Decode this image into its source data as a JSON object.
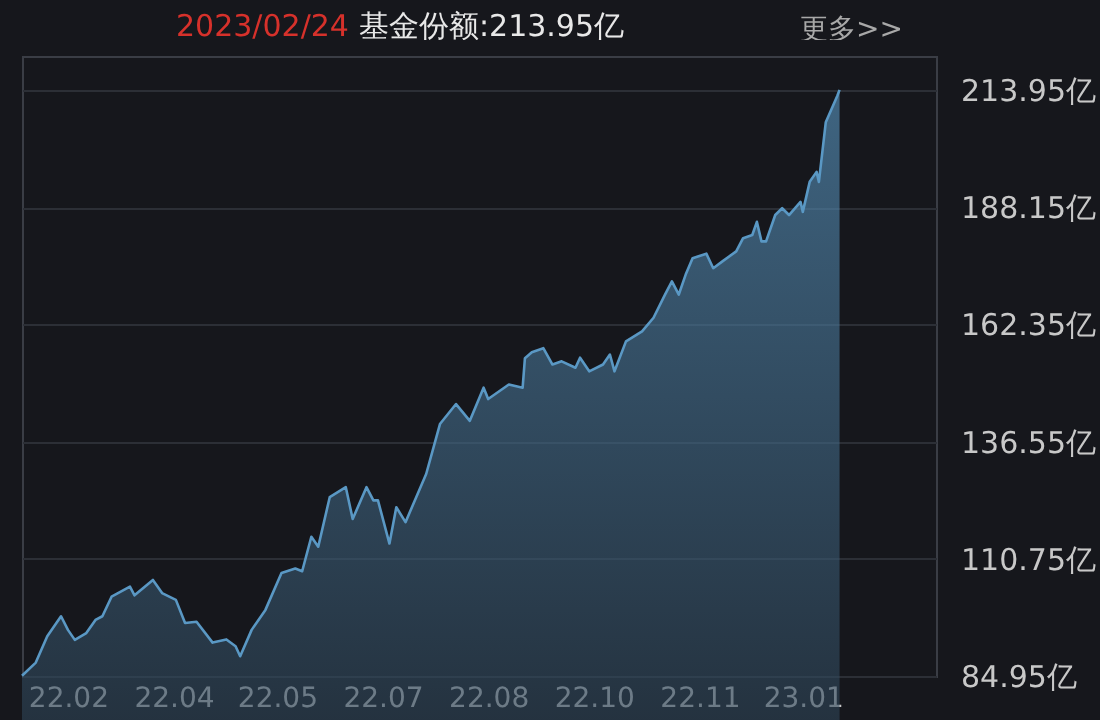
{
  "chart_data": {
    "type": "area",
    "title": "2023/02/24",
    "subtitle": "基金份额:213.95亿",
    "annotations": [
      "更多>>"
    ],
    "x": [
      "2022-02-06",
      "2022-02-12",
      "2022-02-17",
      "2022-02-23",
      "2022-02-26",
      "2022-03-01",
      "2022-03-06",
      "2022-03-10",
      "2022-03-13",
      "2022-03-17",
      "2022-03-25",
      "2022-03-27",
      "2022-04-04",
      "2022-04-08",
      "2022-04-14",
      "2022-04-18",
      "2022-04-23",
      "2022-04-30",
      "2022-05-06",
      "2022-05-10",
      "2022-05-12",
      "2022-05-17",
      "2022-05-23",
      "2022-05-30",
      "2022-06-05",
      "2022-06-08",
      "2022-06-12",
      "2022-06-15",
      "2022-06-20",
      "2022-06-27",
      "2022-06-30",
      "2022-07-06",
      "2022-07-09",
      "2022-07-11",
      "2022-07-16",
      "2022-07-19",
      "2022-07-23",
      "2022-08-01",
      "2022-08-07",
      "2022-08-14",
      "2022-08-20",
      "2022-08-26",
      "2022-08-28",
      "2022-09-06",
      "2022-09-12",
      "2022-09-13",
      "2022-09-16",
      "2022-09-21",
      "2022-09-25",
      "2022-09-29",
      "2022-10-05",
      "2022-10-07",
      "2022-10-11",
      "2022-10-17",
      "2022-10-20",
      "2022-10-22",
      "2022-10-27",
      "2022-11-03",
      "2022-11-08",
      "2022-11-13",
      "2022-11-16",
      "2022-11-19",
      "2022-11-22",
      "2022-11-25",
      "2022-12-01",
      "2022-12-04",
      "2022-12-08",
      "2022-12-14",
      "2022-12-17",
      "2022-12-21",
      "2022-12-23",
      "2022-12-25",
      "2022-12-27",
      "2022-12-31",
      "2023-01-03",
      "2023-01-06",
      "2023-01-11",
      "2023-01-12",
      "2023-01-15",
      "2023-01-18",
      "2023-01-19",
      "2023-01-22",
      "2023-01-27",
      "2023-01-28"
    ],
    "series": [
      {
        "color": "#5a98c4",
        "values": [
          85.0,
          87.9,
          93.7,
          98.1,
          95.1,
          92.9,
          94.4,
          97.3,
          98.1,
          102.4,
          104.6,
          102.7,
          106.1,
          103.2,
          101.7,
          96.6,
          96.9,
          92.3,
          93.0,
          91.5,
          89.3,
          95.1,
          99.5,
          107.6,
          108.6,
          108.0,
          115.6,
          113.4,
          124.3,
          126.5,
          119.5,
          126.5,
          123.6,
          123.6,
          114.1,
          122.1,
          118.8,
          129.4,
          140.4,
          144.8,
          141.1,
          148.4,
          145.9,
          149.1,
          148.4,
          154.9,
          156.2,
          157.1,
          153.5,
          154.2,
          152.8,
          155.0,
          152.0,
          153.5,
          155.7,
          152.0,
          158.6,
          160.8,
          163.8,
          168.9,
          171.8,
          168.9,
          173.3,
          176.9,
          177.9,
          174.7,
          176.2,
          178.4,
          181.3,
          182.0,
          184.9,
          180.6,
          180.6,
          186.4,
          187.9,
          186.4,
          189.3,
          187.1,
          193.7,
          195.9,
          193.7,
          206.8,
          212.6,
          213.95
        ]
      }
    ],
    "xlim": [
      "2022-02-06",
      "2023-03-11"
    ],
    "xticks": [
      {
        "value": "2022-02-26",
        "label": "22.02"
      },
      {
        "value": "2022-04-13",
        "label": "22.04"
      },
      {
        "value": "2022-05-28",
        "label": "22.05"
      },
      {
        "value": "2022-07-13",
        "label": "22.07"
      },
      {
        "value": "2022-08-28",
        "label": "22.08"
      },
      {
        "value": "2022-10-13",
        "label": "22.10"
      },
      {
        "value": "2022-11-28",
        "label": "22.11"
      },
      {
        "value": "2023-01-12",
        "label": "23.01"
      }
    ],
    "ylim": [
      84.95,
      221.4
    ],
    "yticks": [
      {
        "value": 84.95,
        "label": "84.95亿"
      },
      {
        "value": 110.75,
        "label": "110.75亿"
      },
      {
        "value": 136.55,
        "label": "136.55亿"
      },
      {
        "value": 162.35,
        "label": "162.35亿"
      },
      {
        "value": 188.15,
        "label": "188.15亿"
      },
      {
        "value": 213.95,
        "label": "213.95亿"
      }
    ],
    "grid": "y"
  }
}
